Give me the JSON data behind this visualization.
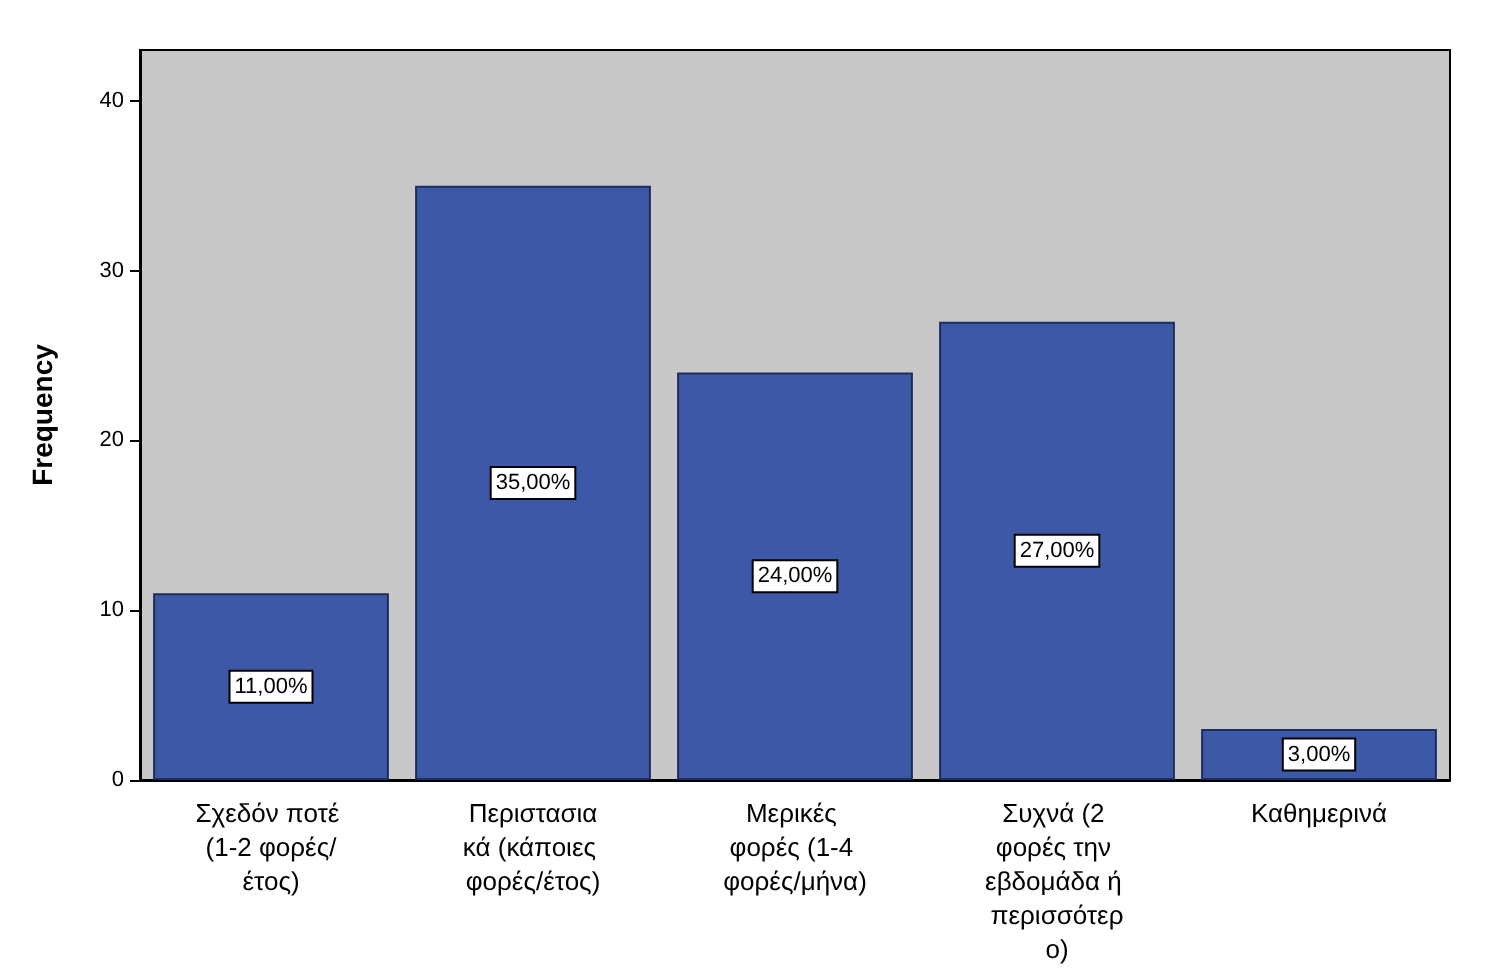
{
  "chart_data": {
    "type": "bar",
    "ylabel": "Frequency",
    "categories": [
      "Σχεδόν ποτέ (1-2 φορές/έτος)",
      "Περιστασιακά (κάποιες φορές/έτος)",
      "Μερικές φορές (1-4 φορές/μήνα)",
      "Συχνά (2 φορές την εβδομάδα ή περισσότερο)",
      "Καθημερινά"
    ],
    "values": [
      11,
      35,
      24,
      27,
      3
    ],
    "value_labels": [
      "11,00%",
      "35,00%",
      "24,00%",
      "27,00%",
      "3,00%"
    ],
    "color": "#3e58a8",
    "ylim": [
      0,
      43
    ],
    "yticks": [
      0,
      10,
      20,
      30,
      40
    ],
    "grid": false
  }
}
